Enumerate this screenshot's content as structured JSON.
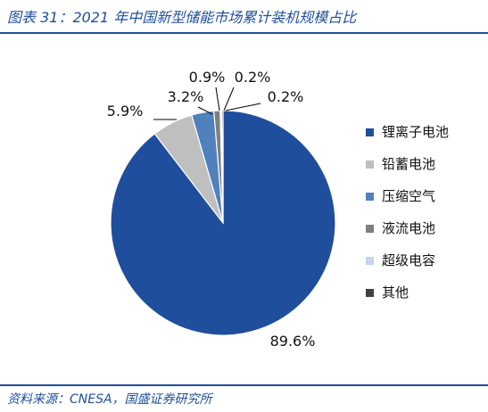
{
  "figure": {
    "title": "图表 31：2021 年中国新型储能市场累计装机规模占比",
    "source": "资料来源：CNESA，国盛证券研究所"
  },
  "chart_data": {
    "type": "pie",
    "title": "",
    "categories": [
      "锂离子电池",
      "铅蓄电池",
      "压缩空气",
      "液流电池",
      "超级电容",
      "其他"
    ],
    "values": [
      89.6,
      5.9,
      3.2,
      0.9,
      0.2,
      0.2
    ],
    "value_labels": [
      "89.6%",
      "5.9%",
      "3.2%",
      "0.9%",
      "0.2%",
      "0.2%"
    ],
    "colors": [
      "#1f4e9c",
      "#bfbfbf",
      "#4f81bd",
      "#7f7f7f",
      "#c5d5ee",
      "#404040"
    ],
    "legend_position": "right",
    "start": "12 o'clock",
    "direction": "clockwise"
  }
}
